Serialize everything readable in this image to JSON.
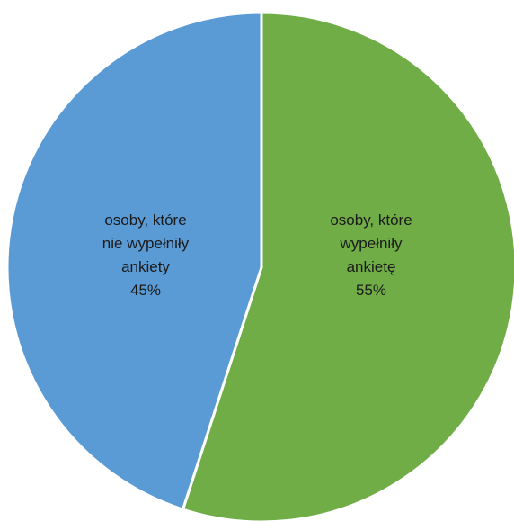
{
  "chart_data": {
    "type": "pie",
    "title": "",
    "start_angle_deg": 0,
    "direction": "clockwise",
    "slices": [
      {
        "label_lines": [
          "osoby, które",
          "wypełniły",
          "ankietę"
        ],
        "value": 55,
        "percent_label": "55%",
        "color": "#70ad47"
      },
      {
        "label_lines": [
          "osoby, które",
          "nie wypełniły",
          "ankiety"
        ],
        "value": 45,
        "percent_label": "45%",
        "color": "#5b9bd5"
      }
    ],
    "slice_border_color": "#ffffff",
    "legend": "none"
  }
}
